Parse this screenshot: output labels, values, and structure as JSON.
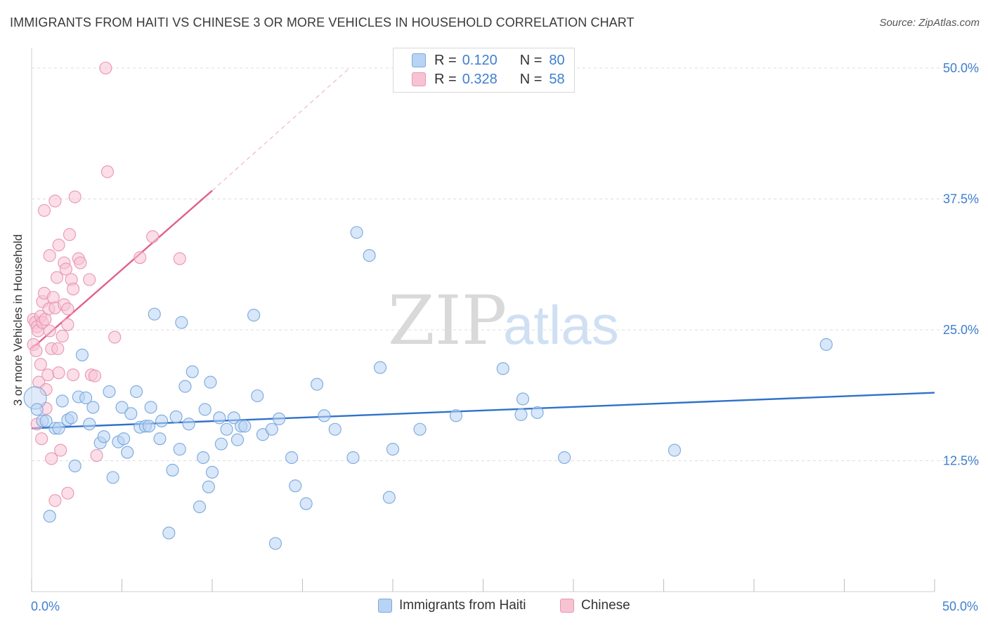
{
  "header": {
    "title": "IMMIGRANTS FROM HAITI VS CHINESE 3 OR MORE VEHICLES IN HOUSEHOLD CORRELATION CHART",
    "source": "Source: ZipAtlas.com"
  },
  "watermark": {
    "zip": "ZIP",
    "atlas": "atlas"
  },
  "legend_top": {
    "r_label": "R =",
    "n_label": "N =",
    "rows": [
      {
        "r": "0.120",
        "n": "80"
      },
      {
        "r": "0.328",
        "n": "58"
      }
    ]
  },
  "legend_bottom": {
    "items": [
      {
        "label": "Immigrants from Haiti"
      },
      {
        "label": "Chinese"
      }
    ]
  },
  "colors": {
    "haiti_fill": "#b8d3f4",
    "haiti_stroke": "#7aa8dc",
    "haiti_line": "#2f72c9",
    "chinese_fill": "#f7c3d3",
    "chinese_stroke": "#e996b1",
    "chinese_line": "#e0628c",
    "accent_text": "#3f7fcf"
  },
  "chart_data": {
    "type": "scatter",
    "title": "IMMIGRANTS FROM HAITI VS CHINESE 3 OR MORE VEHICLES IN HOUSEHOLD CORRELATION CHART",
    "xlabel": "",
    "ylabel": "3 or more Vehicles in Household",
    "xlim": [
      0,
      50
    ],
    "ylim": [
      0,
      51.5
    ],
    "x_ticks_labeled": [
      {
        "value": 0,
        "label": "0.0%"
      },
      {
        "value": 50,
        "label": "50.0%"
      }
    ],
    "y_ticks": [
      {
        "value": 12.5,
        "label": "12.5%"
      },
      {
        "value": 25,
        "label": "25.0%"
      },
      {
        "value": 37.5,
        "label": "37.5%"
      },
      {
        "value": 50,
        "label": "50.0%"
      }
    ],
    "grid": true,
    "series": [
      {
        "name": "Immigrants from Haiti",
        "color": "#b8d3f4",
        "trend": {
          "x": [
            0,
            50
          ],
          "y": [
            15.6,
            19.0
          ]
        },
        "points": [
          [
            0.2,
            18.5
          ],
          [
            0.3,
            17.4
          ],
          [
            0.6,
            16.3
          ],
          [
            0.8,
            16.3
          ],
          [
            1.0,
            7.2
          ],
          [
            1.3,
            15.6
          ],
          [
            1.5,
            15.6
          ],
          [
            1.7,
            18.2
          ],
          [
            2.0,
            16.4
          ],
          [
            2.2,
            16.6
          ],
          [
            2.4,
            12.0
          ],
          [
            2.6,
            18.6
          ],
          [
            2.8,
            22.6
          ],
          [
            3.0,
            18.5
          ],
          [
            3.2,
            16.0
          ],
          [
            3.4,
            17.6
          ],
          [
            3.8,
            14.2
          ],
          [
            4.0,
            14.8
          ],
          [
            4.3,
            19.1
          ],
          [
            4.5,
            10.9
          ],
          [
            4.8,
            14.3
          ],
          [
            5.0,
            17.6
          ],
          [
            5.1,
            14.6
          ],
          [
            5.3,
            13.3
          ],
          [
            5.5,
            17.0
          ],
          [
            5.8,
            19.1
          ],
          [
            6.0,
            15.7
          ],
          [
            6.3,
            15.8
          ],
          [
            6.5,
            15.8
          ],
          [
            6.6,
            17.6
          ],
          [
            6.8,
            26.5
          ],
          [
            7.1,
            14.6
          ],
          [
            7.2,
            16.3
          ],
          [
            7.6,
            5.6
          ],
          [
            7.8,
            11.6
          ],
          [
            8.0,
            16.7
          ],
          [
            8.2,
            13.6
          ],
          [
            8.3,
            25.7
          ],
          [
            8.5,
            19.6
          ],
          [
            8.7,
            16.0
          ],
          [
            8.9,
            21.0
          ],
          [
            9.3,
            8.1
          ],
          [
            9.5,
            12.8
          ],
          [
            9.6,
            17.4
          ],
          [
            9.8,
            10.0
          ],
          [
            9.9,
            20.0
          ],
          [
            10.0,
            11.4
          ],
          [
            10.4,
            16.6
          ],
          [
            10.5,
            14.1
          ],
          [
            10.8,
            15.5
          ],
          [
            11.2,
            16.6
          ],
          [
            11.4,
            14.5
          ],
          [
            11.6,
            15.8
          ],
          [
            11.8,
            15.8
          ],
          [
            12.3,
            26.4
          ],
          [
            12.5,
            18.7
          ],
          [
            12.8,
            15.0
          ],
          [
            13.3,
            15.5
          ],
          [
            13.5,
            4.6
          ],
          [
            13.7,
            16.5
          ],
          [
            14.4,
            12.8
          ],
          [
            14.6,
            10.1
          ],
          [
            15.2,
            8.4
          ],
          [
            15.8,
            19.8
          ],
          [
            16.2,
            16.8
          ],
          [
            16.8,
            15.5
          ],
          [
            17.8,
            12.8
          ],
          [
            18.0,
            34.3
          ],
          [
            18.7,
            32.1
          ],
          [
            19.3,
            21.4
          ],
          [
            19.8,
            9.0
          ],
          [
            20.0,
            13.6
          ],
          [
            21.5,
            15.5
          ],
          [
            23.5,
            16.8
          ],
          [
            26.1,
            21.3
          ],
          [
            27.1,
            16.9
          ],
          [
            27.2,
            18.4
          ],
          [
            28.0,
            17.1
          ],
          [
            29.5,
            12.8
          ],
          [
            35.6,
            13.5
          ],
          [
            44.0,
            23.6
          ]
        ]
      },
      {
        "name": "Chinese",
        "color": "#f7c3d3",
        "trend": {
          "x": [
            0,
            10
          ],
          "y": [
            23.2,
            38.3
          ]
        },
        "trend_dashed": {
          "x": [
            10,
            17.6
          ],
          "y": [
            38.3,
            50.0
          ]
        },
        "points": [
          [
            0.1,
            23.6
          ],
          [
            0.1,
            26.0
          ],
          [
            0.2,
            25.7
          ],
          [
            0.25,
            23.0
          ],
          [
            0.3,
            25.3
          ],
          [
            0.3,
            16.0
          ],
          [
            0.35,
            24.9
          ],
          [
            0.4,
            20.0
          ],
          [
            0.5,
            26.3
          ],
          [
            0.5,
            21.7
          ],
          [
            0.55,
            14.6
          ],
          [
            0.6,
            27.7
          ],
          [
            0.6,
            25.7
          ],
          [
            0.7,
            36.4
          ],
          [
            0.7,
            28.5
          ],
          [
            0.75,
            26.0
          ],
          [
            0.8,
            19.3
          ],
          [
            0.8,
            17.5
          ],
          [
            0.9,
            20.7
          ],
          [
            0.95,
            27.0
          ],
          [
            1.0,
            24.9
          ],
          [
            1.0,
            32.1
          ],
          [
            1.1,
            23.2
          ],
          [
            1.1,
            12.7
          ],
          [
            1.2,
            28.1
          ],
          [
            1.3,
            37.3
          ],
          [
            1.3,
            27.1
          ],
          [
            1.3,
            8.7
          ],
          [
            1.4,
            30.0
          ],
          [
            1.45,
            23.2
          ],
          [
            1.5,
            20.9
          ],
          [
            1.5,
            33.1
          ],
          [
            1.6,
            13.5
          ],
          [
            1.7,
            24.4
          ],
          [
            1.8,
            31.4
          ],
          [
            1.8,
            27.4
          ],
          [
            1.9,
            30.8
          ],
          [
            2.0,
            27.0
          ],
          [
            2.0,
            25.5
          ],
          [
            2.0,
            9.4
          ],
          [
            2.1,
            34.1
          ],
          [
            2.2,
            29.8
          ],
          [
            2.3,
            28.9
          ],
          [
            2.3,
            20.7
          ],
          [
            2.4,
            37.7
          ],
          [
            2.6,
            31.8
          ],
          [
            2.7,
            31.4
          ],
          [
            3.2,
            29.8
          ],
          [
            3.3,
            20.7
          ],
          [
            3.5,
            20.6
          ],
          [
            3.6,
            13.0
          ],
          [
            4.1,
            50.0
          ],
          [
            4.2,
            40.1
          ],
          [
            4.6,
            24.3
          ],
          [
            6.0,
            31.9
          ],
          [
            6.7,
            33.9
          ],
          [
            8.2,
            31.8
          ]
        ]
      }
    ]
  }
}
